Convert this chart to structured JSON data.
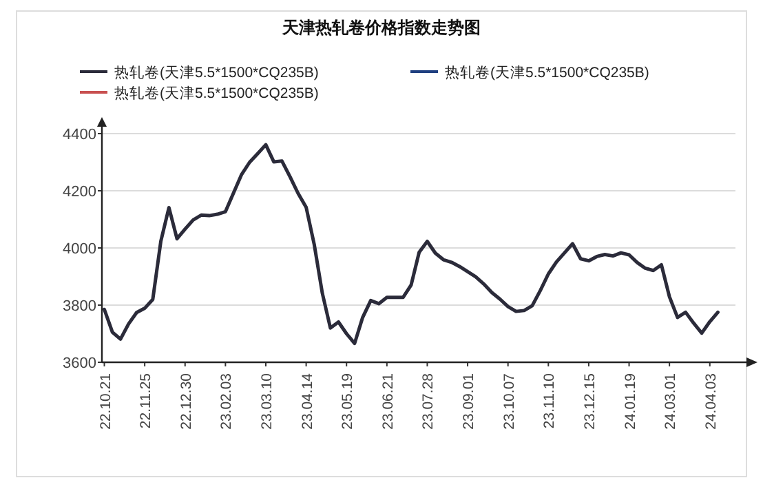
{
  "chart_data": {
    "type": "line",
    "title": "天津热轧卷价格指数走势图",
    "categories": [
      "22.10.21",
      null,
      null,
      null,
      null,
      "22.11.25",
      null,
      null,
      null,
      null,
      "22.12.30",
      null,
      null,
      null,
      null,
      "23.02.03",
      null,
      null,
      null,
      null,
      "23.03.10",
      null,
      null,
      null,
      null,
      "23.04.14",
      null,
      null,
      null,
      null,
      "23.05.19",
      null,
      null,
      null,
      null,
      "23.06.21",
      null,
      null,
      null,
      null,
      "23.07.28",
      null,
      null,
      null,
      null,
      "23.09.01",
      null,
      null,
      null,
      null,
      "23.10.07",
      null,
      null,
      null,
      null,
      "23.11.10",
      null,
      null,
      null,
      null,
      "23.12.15",
      null,
      null,
      null,
      null,
      "24.01.19",
      null,
      null,
      null,
      null,
      "24.03.01",
      null,
      null,
      null,
      null,
      "24.04.03",
      null
    ],
    "series": [
      {
        "name": "热轧卷(天津5.5*1500*CQ235B)",
        "color": "#2b2b3a",
        "values": [
          3785,
          3705,
          3681,
          3734,
          3774,
          3789,
          3820,
          4024,
          4141,
          4032,
          4066,
          4098,
          4115,
          4113,
          4118,
          4127,
          4192,
          4257,
          4300,
          4330,
          4361,
          4301,
          4304,
          4249,
          4191,
          4142,
          4012,
          3842,
          3720,
          3741,
          3700,
          3666,
          3757,
          3816,
          3805,
          3827,
          3827,
          3827,
          3870,
          3985,
          4023,
          3982,
          3959,
          3950,
          3935,
          3917,
          3899,
          3874,
          3844,
          3821,
          3795,
          3778,
          3781,
          3798,
          3851,
          3909,
          3951,
          3983,
          4015,
          3962,
          3955,
          3970,
          3977,
          3972,
          3983,
          3976,
          3949,
          3929,
          3921,
          3941,
          3829,
          3757,
          3775,
          3737,
          3702,
          3742,
          3775
        ]
      },
      {
        "name": "热轧卷(天津5.5*1500*CQ235B)",
        "color": "#1f3f80",
        "values": [
          null,
          null,
          null,
          null,
          null,
          null,
          null,
          null,
          null,
          null,
          null,
          null,
          null,
          null,
          null,
          null,
          null,
          null,
          null,
          null,
          null,
          null,
          null,
          null,
          null,
          null,
          null,
          null,
          null,
          null,
          null,
          null,
          null,
          null,
          null,
          null,
          null,
          null,
          null,
          null,
          null,
          null,
          null,
          null,
          null,
          null,
          null,
          null,
          null,
          null,
          null,
          null,
          null,
          null,
          null,
          null,
          null,
          null,
          null,
          null,
          null,
          null,
          null,
          null,
          null,
          null,
          null,
          null,
          null,
          null,
          null,
          null,
          null,
          null,
          null,
          null,
          null
        ]
      },
      {
        "name": "热轧卷(天津5.5*1500*CQ235B)",
        "color": "#c85050",
        "values": [
          null,
          null,
          null,
          null,
          null,
          null,
          null,
          null,
          null,
          null,
          null,
          null,
          null,
          null,
          null,
          null,
          null,
          null,
          null,
          null,
          null,
          null,
          null,
          null,
          null,
          null,
          null,
          null,
          null,
          null,
          null,
          null,
          null,
          null,
          null,
          null,
          null,
          null,
          null,
          null,
          null,
          null,
          null,
          null,
          null,
          null,
          null,
          null,
          null,
          null,
          null,
          null,
          null,
          null,
          null,
          null,
          null,
          null,
          null,
          null,
          null,
          null,
          null,
          null,
          null,
          null,
          null,
          null,
          null,
          null,
          null,
          null,
          null,
          null,
          null,
          null,
          null
        ]
      }
    ],
    "ylim": [
      3600,
      4400
    ],
    "yticks": [
      3600,
      3800,
      4000,
      4200,
      4400
    ],
    "grid": "y",
    "legend": "top",
    "line_style": "solid",
    "marker": "none"
  }
}
